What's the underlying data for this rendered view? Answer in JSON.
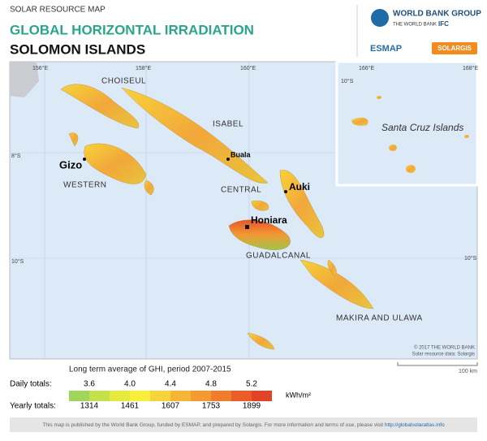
{
  "header": {
    "kicker": "SOLAR RESOURCE MAP",
    "title": "GLOBAL HORIZONTAL IRRADIATION",
    "country": "SOLOMON ISLANDS"
  },
  "logos": {
    "wbg": "WORLD BANK GROUP",
    "wb": "THE WORLD BANK",
    "ifc": "IFC",
    "esmap": "ESMAP",
    "solargis": "SOLARGIS"
  },
  "map": {
    "lon_labels": [
      "156°E",
      "158°E",
      "160°E"
    ],
    "lat_labels": [
      "8°S",
      "10°S"
    ],
    "regions": [
      "CHOISEUL",
      "ISABEL",
      "WESTERN",
      "CENTRAL",
      "GUADALCANAL",
      "MAKIRA AND ULAWA"
    ],
    "towns": [
      "Gizo",
      "Buala",
      "Auki",
      "Honiara"
    ],
    "inset": {
      "lon_labels": [
        "166°E",
        "168°E"
      ],
      "lat_label": "10°S",
      "name": "Santa Cruz Islands"
    },
    "credits": [
      "© 2017 THE WORLD BANK",
      "Solar resource data: Solargis"
    ],
    "scale": "100 km"
  },
  "legend": {
    "title": "Long term average of GHI, period 2007-2015",
    "daily_label": "Daily totals:",
    "yearly_label": "Yearly totals:",
    "daily": [
      "3.6",
      "4.0",
      "4.4",
      "4.8",
      "5.2"
    ],
    "yearly": [
      "1314",
      "1461",
      "1607",
      "1753",
      "1899"
    ],
    "unit": "kWh/m²"
  },
  "footer": {
    "text": "This map is published by the World Bank Group, funded by ESMAP, and prepared by Solargis. For more information and terms of use, please visit",
    "link": "http://globalsolaratlas.info"
  }
}
